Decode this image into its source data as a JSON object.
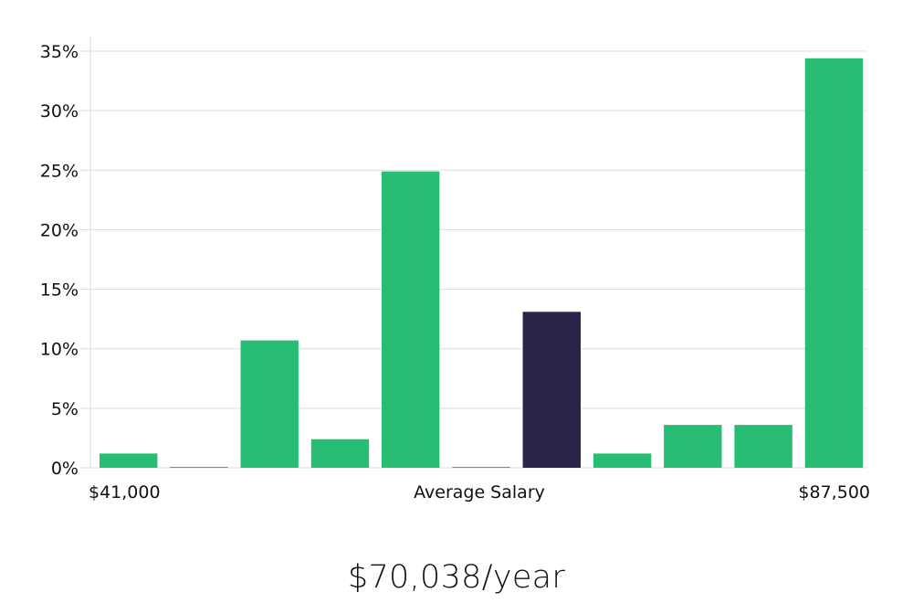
{
  "headline": "$70,038/year",
  "colors": {
    "bar": "#27BD74",
    "highlight": "#28244A",
    "grid": "#DDDDDD",
    "text": "#111111"
  },
  "chart_data": {
    "type": "bar",
    "title": "",
    "xlabel": "Average Salary",
    "ylabel": "",
    "x_range_labels": [
      "$41,000",
      "$87,500"
    ],
    "ylim": [
      0,
      35
    ],
    "yticks": [
      0,
      5,
      10,
      15,
      20,
      25,
      30,
      35
    ],
    "ytick_labels": [
      "0%",
      "5%",
      "10%",
      "15%",
      "20%",
      "25%",
      "30%",
      "35%"
    ],
    "values": [
      1.2,
      0.05,
      10.7,
      2.4,
      24.9,
      0.05,
      13.1,
      1.2,
      3.6,
      3.6,
      34.4
    ],
    "highlight_index": 6,
    "grid": true,
    "legend": "none"
  }
}
